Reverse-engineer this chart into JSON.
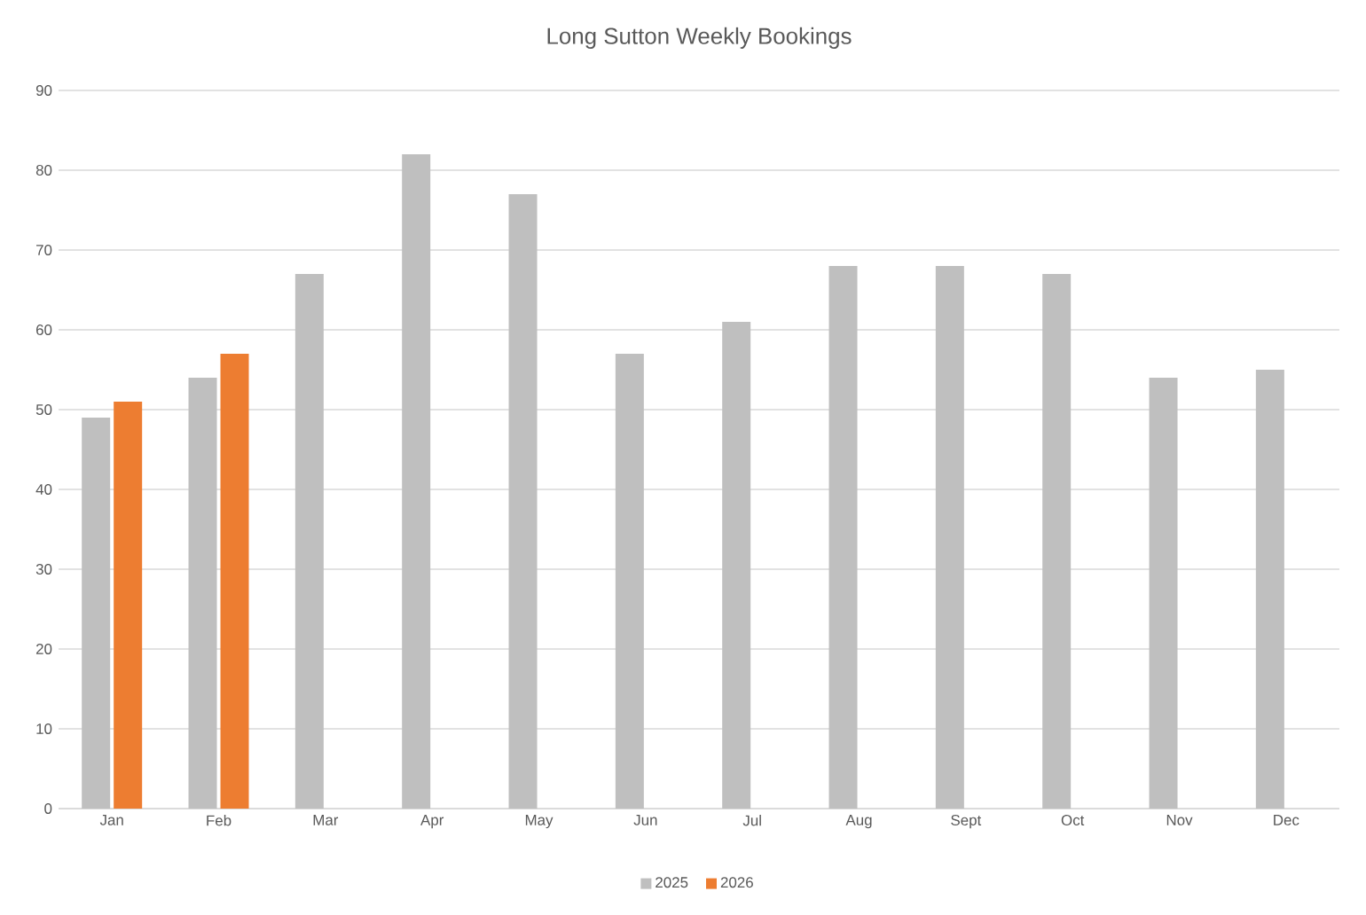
{
  "chart_data": {
    "type": "bar",
    "title": "Long Sutton Weekly Bookings",
    "categories": [
      "Jan",
      "Feb",
      "Mar",
      "Apr",
      "May",
      "Jun",
      "Jul",
      "Aug",
      "Sept",
      "Oct",
      "Nov",
      "Dec"
    ],
    "series": [
      {
        "name": "2025",
        "color": "#bfbfbf",
        "values": [
          49,
          54,
          67,
          82,
          77,
          57,
          61,
          68,
          68,
          67,
          54,
          55
        ]
      },
      {
        "name": "2026",
        "color": "#ed7d31",
        "values": [
          51,
          57,
          null,
          null,
          null,
          null,
          null,
          null,
          null,
          null,
          null,
          null
        ]
      }
    ],
    "ylim": [
      0,
      90
    ],
    "yticks": [
      0,
      10,
      20,
      30,
      40,
      50,
      60,
      70,
      80,
      90
    ],
    "grid": "y",
    "legend": "bottom"
  }
}
